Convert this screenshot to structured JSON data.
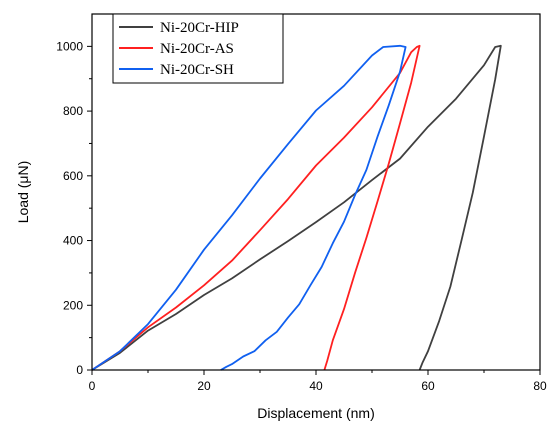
{
  "chart_data": {
    "type": "line",
    "title": "",
    "xlabel": "Displacement (nm)",
    "ylabel": "Load (μN)",
    "xlim": [
      0,
      80
    ],
    "ylim": [
      0,
      1100
    ],
    "xticks": [
      0,
      20,
      40,
      60,
      80
    ],
    "yticks": [
      0,
      200,
      400,
      600,
      800,
      1000
    ],
    "grid": false,
    "legend_position": "top-left",
    "series": [
      {
        "name": "Ni-20Cr-HIP",
        "color": "#404040",
        "x": [
          0,
          5,
          10,
          15,
          20,
          25,
          30,
          35,
          40,
          45,
          50,
          55,
          60,
          65,
          70,
          72,
          73,
          72,
          70,
          68,
          66,
          64,
          62,
          60,
          59,
          58.5
        ],
        "y": [
          0,
          55,
          120,
          175,
          230,
          285,
          340,
          400,
          455,
          520,
          585,
          655,
          750,
          840,
          940,
          1000,
          1000,
          900,
          720,
          550,
          400,
          260,
          150,
          60,
          20,
          0
        ]
      },
      {
        "name": "Ni-20Cr-AS",
        "color": "#ff2020",
        "x": [
          0,
          5,
          10,
          15,
          20,
          25,
          30,
          35,
          40,
          45,
          50,
          55,
          57,
          58,
          58.5,
          57,
          55,
          53,
          51,
          49,
          47,
          45,
          43,
          42,
          41.5
        ],
        "y": [
          0,
          60,
          130,
          195,
          260,
          340,
          430,
          530,
          630,
          720,
          810,
          920,
          980,
          1000,
          1000,
          890,
          760,
          640,
          520,
          410,
          300,
          190,
          90,
          30,
          0
        ]
      },
      {
        "name": "Ni-20Cr-SH",
        "color": "#1060f0",
        "x": [
          0,
          5,
          10,
          15,
          20,
          25,
          30,
          35,
          40,
          45,
          50,
          52,
          55,
          56,
          55,
          53,
          51,
          49,
          47,
          45,
          43,
          41,
          39,
          37,
          35,
          33,
          31,
          29,
          27,
          25,
          24,
          23
        ],
        "y": [
          0,
          60,
          140,
          250,
          370,
          480,
          590,
          700,
          800,
          880,
          970,
          1000,
          1000,
          1000,
          920,
          820,
          720,
          620,
          540,
          460,
          390,
          320,
          260,
          205,
          160,
          120,
          90,
          60,
          40,
          20,
          8,
          0
        ]
      }
    ]
  }
}
